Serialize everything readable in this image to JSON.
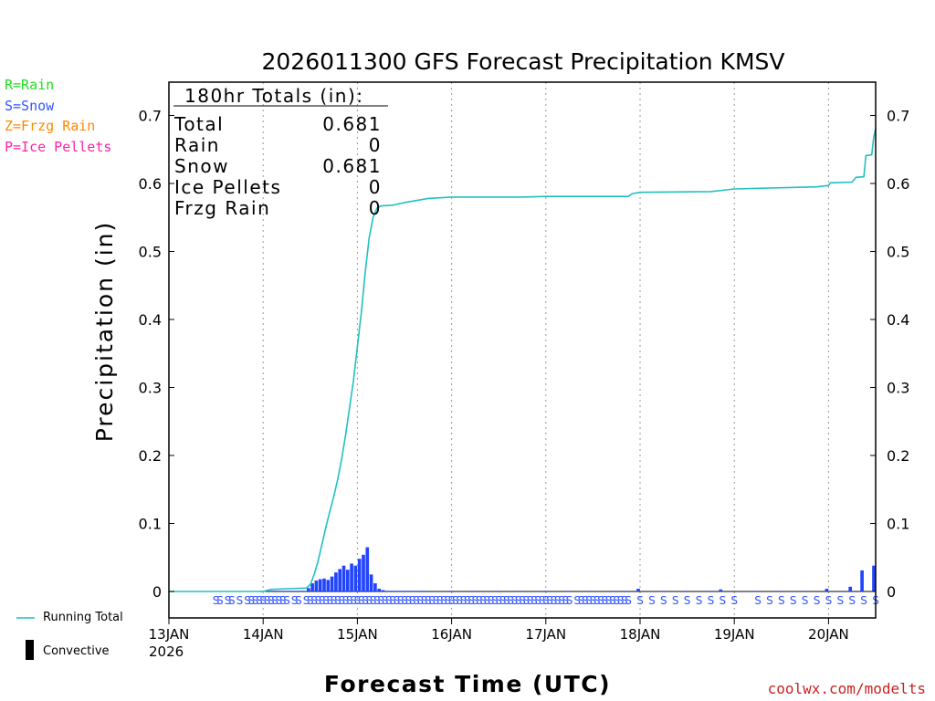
{
  "chart_data": {
    "type": "bar+line",
    "title": "2026011300 GFS Forecast Precipitation KMSV",
    "ylabel": "Precipitation (in)",
    "xlabel": "Forecast Time (UTC)",
    "ylim": [
      0,
      0.75
    ],
    "yticks": [
      "0",
      "0.1",
      "0.2",
      "0.3",
      "0.4",
      "0.5",
      "0.6",
      "0.7"
    ],
    "xlim_hours": [
      0,
      180
    ],
    "xticks": [
      {
        "hour": 0,
        "label": "13JAN",
        "sublabel": "2026"
      },
      {
        "hour": 24,
        "label": "14JAN"
      },
      {
        "hour": 48,
        "label": "15JAN"
      },
      {
        "hour": 72,
        "label": "16JAN"
      },
      {
        "hour": 96,
        "label": "17JAN"
      },
      {
        "hour": 120,
        "label": "18JAN"
      },
      {
        "hour": 144,
        "label": "19JAN"
      },
      {
        "hour": 168,
        "label": "20JAN"
      }
    ],
    "totals": {
      "heading": "180hr Totals (in):",
      "rows": [
        {
          "label": "Total",
          "value": "0.681"
        },
        {
          "label": "Rain",
          "value": "0"
        },
        {
          "label": "Snow",
          "value": "0.681"
        },
        {
          "label": "Ice Pellets",
          "value": "0"
        },
        {
          "label": "Frzg Rain",
          "value": "0"
        }
      ]
    },
    "precip_types": [
      {
        "code": "R=Rain",
        "color": "#22dd22"
      },
      {
        "code": "S=Snow",
        "color": "#3355ff"
      },
      {
        "code": "Z=Frzg Rain",
        "color": "#ff8800"
      },
      {
        "code": "P=Ice Pellets",
        "color": "#ff22aa"
      }
    ],
    "running_total": {
      "name": "Running Total",
      "color": "#22c0c0",
      "points": [
        [
          0,
          0
        ],
        [
          24,
          0
        ],
        [
          26,
          0.003
        ],
        [
          30,
          0.004
        ],
        [
          35,
          0.005
        ],
        [
          36,
          0.01
        ],
        [
          37,
          0.025
        ],
        [
          38,
          0.045
        ],
        [
          39,
          0.07
        ],
        [
          40,
          0.095
        ],
        [
          41,
          0.118
        ],
        [
          42,
          0.14
        ],
        [
          43,
          0.165
        ],
        [
          44,
          0.195
        ],
        [
          45,
          0.23
        ],
        [
          46,
          0.27
        ],
        [
          47,
          0.31
        ],
        [
          48,
          0.36
        ],
        [
          49,
          0.41
        ],
        [
          50,
          0.47
        ],
        [
          51,
          0.52
        ],
        [
          52,
          0.55
        ],
        [
          53,
          0.564
        ],
        [
          54,
          0.567
        ],
        [
          57,
          0.568
        ],
        [
          60,
          0.572
        ],
        [
          66,
          0.578
        ],
        [
          72,
          0.58
        ],
        [
          90,
          0.58
        ],
        [
          96,
          0.581
        ],
        [
          117,
          0.581
        ],
        [
          118,
          0.585
        ],
        [
          120,
          0.587
        ],
        [
          138,
          0.588
        ],
        [
          141,
          0.59
        ],
        [
          144,
          0.592
        ],
        [
          165,
          0.595
        ],
        [
          168,
          0.597
        ],
        [
          168.5,
          0.601
        ],
        [
          174,
          0.602
        ],
        [
          175,
          0.609
        ],
        [
          177,
          0.61
        ],
        [
          177.5,
          0.641
        ],
        [
          179,
          0.642
        ],
        [
          179.5,
          0.668
        ],
        [
          180,
          0.681
        ]
      ]
    },
    "precip_bars": {
      "name": "Snow",
      "color": "#2244ff",
      "hour_values": [
        [
          24,
          0.001
        ],
        [
          25,
          0.001
        ],
        [
          26,
          0.001
        ],
        [
          27,
          0.001
        ],
        [
          28,
          0.001
        ],
        [
          29,
          0.001
        ],
        [
          30,
          0.001
        ],
        [
          31,
          0.001
        ],
        [
          32,
          0.001
        ],
        [
          33,
          0.001
        ],
        [
          34,
          0.001
        ],
        [
          35,
          0.001
        ],
        [
          36,
          0.005
        ],
        [
          37,
          0.012
        ],
        [
          38,
          0.016
        ],
        [
          39,
          0.018
        ],
        [
          40,
          0.019
        ],
        [
          41,
          0.017
        ],
        [
          42,
          0.022
        ],
        [
          43,
          0.028
        ],
        [
          44,
          0.033
        ],
        [
          45,
          0.038
        ],
        [
          46,
          0.032
        ],
        [
          47,
          0.041
        ],
        [
          48,
          0.038
        ],
        [
          49,
          0.048
        ],
        [
          50,
          0.054
        ],
        [
          51,
          0.065
        ],
        [
          52,
          0.025
        ],
        [
          53,
          0.012
        ],
        [
          54,
          0.004
        ],
        [
          55,
          0.002
        ],
        [
          56,
          0.001
        ],
        [
          57,
          0.001
        ],
        [
          58,
          0.001
        ],
        [
          59,
          0.001
        ],
        [
          60,
          0.001
        ],
        [
          61,
          0.001
        ],
        [
          62,
          0.001
        ],
        [
          63,
          0.001
        ],
        [
          64,
          0.001
        ],
        [
          65,
          0.001
        ],
        [
          66,
          0.001
        ],
        [
          72,
          0.001
        ],
        [
          78,
          0.001
        ],
        [
          84,
          0.001
        ],
        [
          90,
          0.001
        ],
        [
          96,
          0.001
        ],
        [
          102,
          0.001
        ],
        [
          108,
          0.001
        ],
        [
          114,
          0.001
        ],
        [
          117,
          0.001
        ],
        [
          120,
          0.004
        ],
        [
          126,
          0.001
        ],
        [
          132,
          0.001
        ],
        [
          138,
          0.001
        ],
        [
          141,
          0.003
        ],
        [
          150,
          0.001
        ],
        [
          156,
          0.001
        ],
        [
          162,
          0.001
        ],
        [
          168,
          0.004
        ],
        [
          174,
          0.007
        ],
        [
          177,
          0.031
        ],
        [
          180,
          0.038
        ]
      ]
    },
    "type_markers": {
      "label": "S",
      "color": "#3355ff",
      "hours": [
        12,
        13,
        15,
        16,
        18,
        20,
        21,
        22,
        23,
        24,
        25,
        26,
        27,
        28,
        29,
        30,
        32,
        33,
        35,
        36,
        37,
        38,
        39,
        40,
        41,
        42,
        43,
        44,
        45,
        46,
        47,
        48,
        49,
        50,
        51,
        52,
        53,
        54,
        55,
        56,
        57,
        58,
        59,
        60,
        61,
        62,
        63,
        64,
        65,
        66,
        67,
        68,
        69,
        70,
        71,
        72,
        73,
        74,
        75,
        76,
        77,
        78,
        79,
        80,
        81,
        82,
        83,
        84,
        85,
        86,
        87,
        88,
        89,
        90,
        91,
        92,
        93,
        94,
        95,
        96,
        97,
        98,
        99,
        100,
        101,
        102,
        104,
        105,
        106,
        107,
        108,
        109,
        110,
        111,
        112,
        113,
        114,
        115,
        116,
        117,
        120,
        123,
        126,
        129,
        132,
        135,
        138,
        141,
        144,
        150,
        153,
        156,
        159,
        162,
        165,
        168,
        171,
        174,
        177,
        180
      ]
    },
    "legend": {
      "running_total": "Running Total",
      "convective": "Convective"
    },
    "credit": "coolwx.com/modelts"
  }
}
